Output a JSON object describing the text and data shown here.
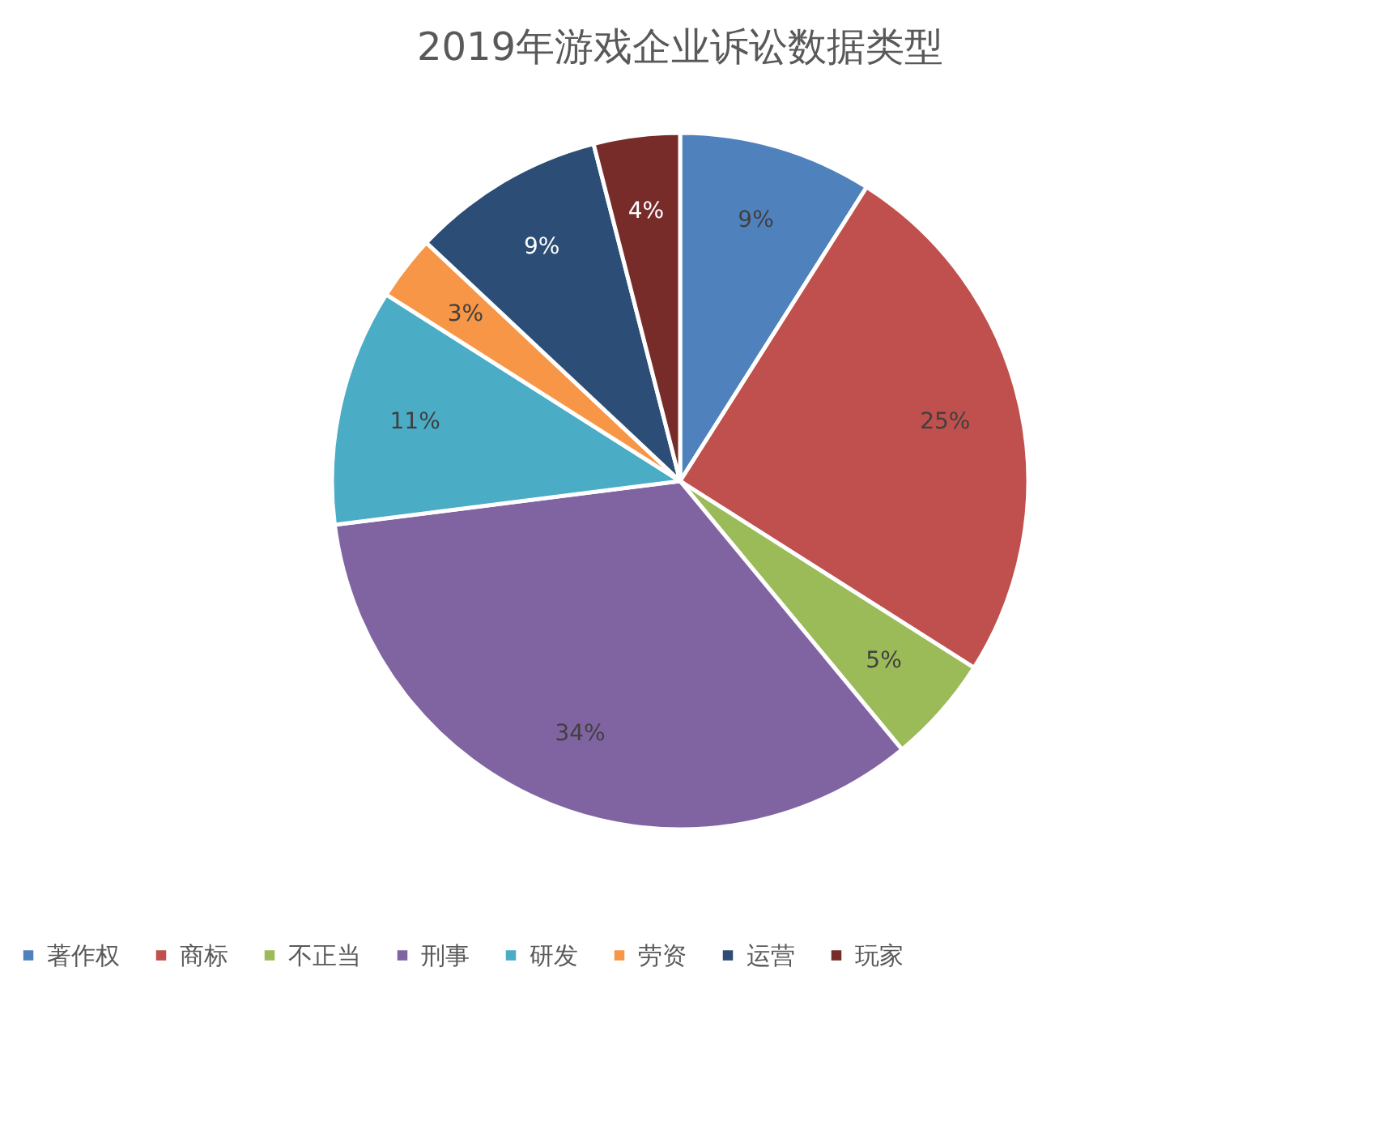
{
  "chart_data": {
    "type": "pie",
    "title": "2019年游戏企业诉讼数据类型",
    "categories": [
      "著作权",
      "商标",
      "不正当",
      "刑事",
      "研发",
      "劳资",
      "运营",
      "玩家"
    ],
    "values": [
      9,
      25,
      5,
      34,
      11,
      3,
      9,
      4
    ],
    "colors": [
      "#4f81bd",
      "#c0504d",
      "#9bbb59",
      "#8064a2",
      "#4bacc6",
      "#f79646",
      "#2c4d75",
      "#772c2a"
    ],
    "value_labels": [
      "9%",
      "25%",
      "5%",
      "34%",
      "11%",
      "3%",
      "9%",
      "4%"
    ],
    "legend": "bottom"
  }
}
